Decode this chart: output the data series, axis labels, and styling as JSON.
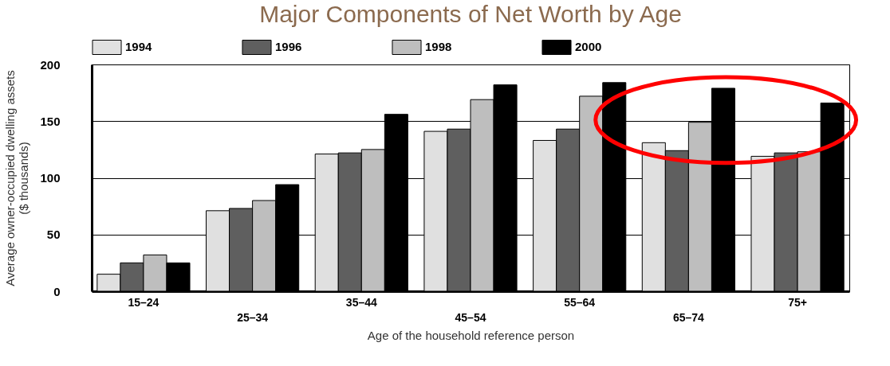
{
  "chart_data": {
    "type": "bar",
    "title": "Major Components of Net Worth by Age",
    "xlabel": "Age of the household reference person",
    "ylabel": "Average owner-occupied dwelling assets\n($ thousands)",
    "categories": [
      "15–24",
      "25–34",
      "35–44",
      "45–54",
      "55–64",
      "65–74",
      "75+"
    ],
    "series": [
      {
        "name": "1994",
        "color": "#e0e0e0",
        "values": [
          15,
          71,
          121,
          141,
          133,
          131,
          119
        ]
      },
      {
        "name": "1996",
        "color": "#5f5f5f",
        "values": [
          25,
          73,
          122,
          143,
          143,
          124,
          122
        ]
      },
      {
        "name": "1998",
        "color": "#bebebe",
        "values": [
          32,
          80,
          125,
          169,
          172,
          149,
          123
        ]
      },
      {
        "name": "2000",
        "color": "#000000",
        "values": [
          25,
          94,
          156,
          182,
          184,
          179,
          166
        ]
      }
    ],
    "ylim": [
      0,
      200
    ],
    "yticks": [
      0,
      50,
      100,
      150,
      200
    ],
    "grid": "y",
    "legend": "top"
  }
}
